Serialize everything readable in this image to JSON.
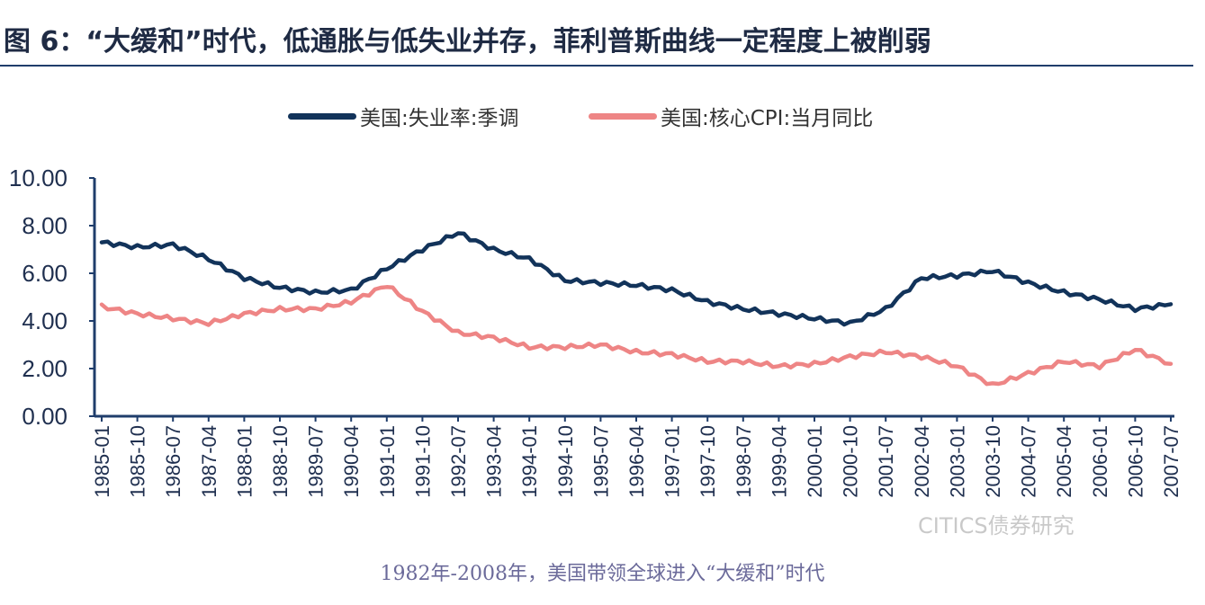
{
  "title": "图 6：“大缓和”时代，低通胀与低失业并存，菲利普斯曲线一定程度上被削弱",
  "caption": "1982年-2008年，美国带领全球进入“大缓和”时代",
  "watermark": "CITICS债券研究",
  "colors": {
    "unemployment": "#12335a",
    "cpi": "#ee8585",
    "axis": "#1f3d6b",
    "caption": "#6b6a9a"
  },
  "chart_data": {
    "type": "line",
    "title": "图 6：“大缓和”时代，低通胀与低失业并存，菲利普斯曲线一定程度上被削弱",
    "xlabel": "",
    "ylabel": "",
    "ylim": [
      0,
      10
    ],
    "yticks": [
      "0.00",
      "2.00",
      "4.00",
      "6.00",
      "8.00",
      "10.00"
    ],
    "grid": false,
    "legend": "top",
    "x_tick_labels": [
      "1985-01",
      "1985-10",
      "1986-07",
      "1987-04",
      "1988-01",
      "1988-10",
      "1989-07",
      "1990-04",
      "1991-01",
      "1991-10",
      "1992-07",
      "1993-04",
      "1994-01",
      "1994-10",
      "1995-07",
      "1996-04",
      "1997-01",
      "1997-10",
      "1998-07",
      "1999-04",
      "2000-01",
      "2000-10",
      "2001-07",
      "2002-04",
      "2003-01",
      "2003-10",
      "2004-07",
      "2005-04",
      "2006-01",
      "2006-10",
      "2007-07"
    ],
    "series": [
      {
        "name": "美国:失业率:季调",
        "values": [
          7.3,
          7.1,
          7.2,
          6.6,
          5.8,
          5.4,
          5.2,
          5.3,
          6.2,
          7.0,
          7.7,
          7.0,
          6.6,
          5.7,
          5.6,
          5.5,
          5.3,
          4.8,
          4.5,
          4.3,
          4.1,
          3.9,
          4.5,
          5.8,
          5.9,
          6.1,
          5.6,
          5.2,
          4.9,
          4.5,
          4.7
        ]
      },
      {
        "name": "美国:核心CPI:当月同比",
        "values": [
          4.6,
          4.3,
          4.1,
          3.9,
          4.3,
          4.5,
          4.5,
          4.8,
          5.5,
          4.4,
          3.5,
          3.3,
          2.9,
          2.9,
          3.0,
          2.7,
          2.6,
          2.3,
          2.3,
          2.1,
          2.2,
          2.5,
          2.7,
          2.5,
          2.1,
          1.3,
          1.8,
          2.3,
          2.1,
          2.8,
          2.2
        ]
      }
    ]
  }
}
